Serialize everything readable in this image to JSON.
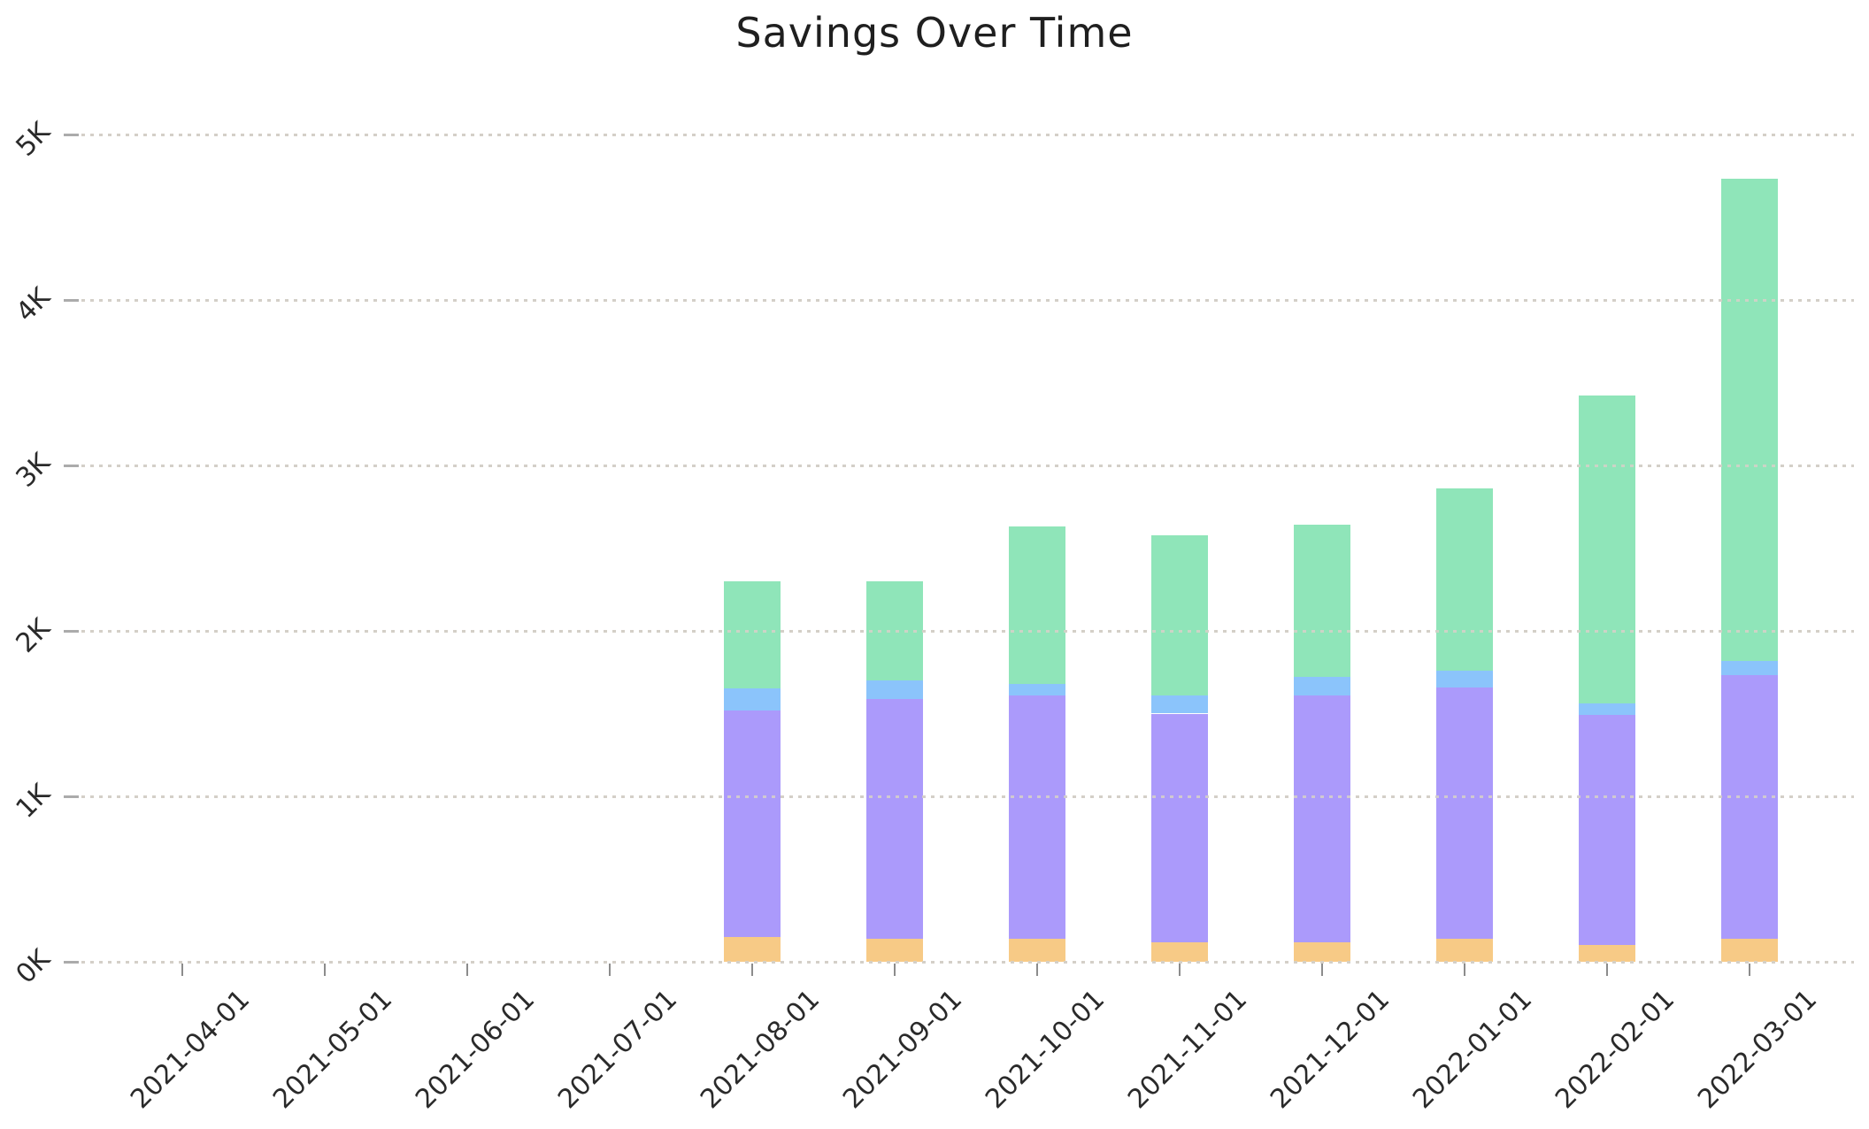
{
  "figure": {
    "background": "#ffffff"
  },
  "chart_data": {
    "type": "bar",
    "stacked": true,
    "title": "Savings Over Time",
    "categories": [
      "2021-04-01",
      "2021-05-01",
      "2021-06-01",
      "2021-07-01",
      "2021-08-01",
      "2021-09-01",
      "2021-10-01",
      "2021-11-01",
      "2021-12-01",
      "2022-01-01",
      "2022-02-01",
      "2022-03-01"
    ],
    "series": [
      {
        "name": "orange (bottom segment)",
        "color": "#f7ca86",
        "values": [
          0,
          0,
          0,
          0,
          150,
          140,
          140,
          120,
          120,
          140,
          100,
          140
        ]
      },
      {
        "name": "purple (second segment)",
        "color": "#ab9afb",
        "values": [
          0,
          0,
          0,
          0,
          1370,
          1450,
          1470,
          1380,
          1490,
          1520,
          1390,
          1590
        ]
      },
      {
        "name": "blue (third segment)",
        "color": "#8bc4fb",
        "values": [
          0,
          0,
          0,
          0,
          130,
          110,
          70,
          110,
          110,
          100,
          70,
          90
        ]
      },
      {
        "name": "green (top segment)",
        "color": "#8fe5b9",
        "values": [
          0,
          0,
          0,
          0,
          650,
          600,
          950,
          970,
          920,
          1100,
          1860,
          2910
        ]
      }
    ],
    "bar_totals": [
      0,
      0,
      0,
      0,
      2300,
      2300,
      2630,
      2580,
      2640,
      2860,
      3420,
      4730
    ],
    "y_ticks": [
      {
        "label": "0K",
        "value": 0
      },
      {
        "label": "1K",
        "value": 1000
      },
      {
        "label": "2K",
        "value": 2000
      },
      {
        "label": "3K",
        "value": 3000
      },
      {
        "label": "4K",
        "value": 4000
      },
      {
        "label": "5K",
        "value": 5000
      }
    ],
    "ylim": [
      0,
      5000
    ],
    "xlabel": "",
    "ylabel": "",
    "legend": "none",
    "grid": "horizontal dotted",
    "x_tick_rotation": 45,
    "y_tick_rotation": 45
  }
}
